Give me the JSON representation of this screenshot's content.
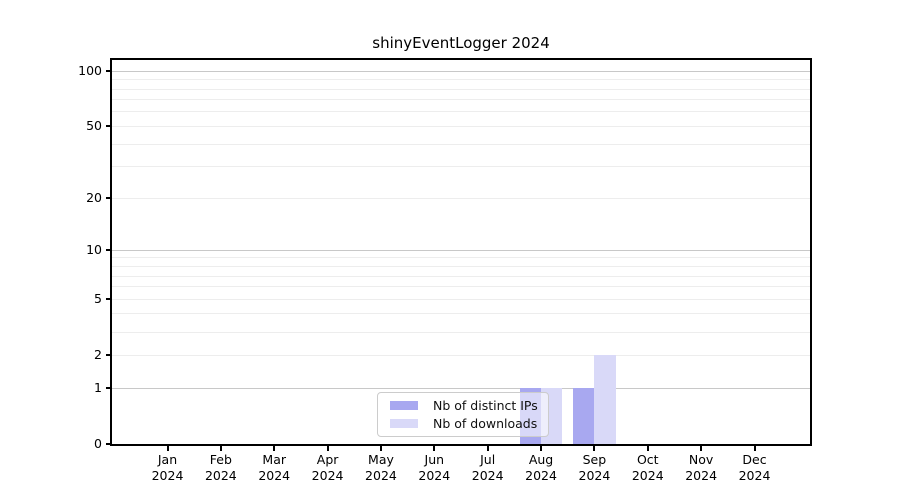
{
  "title": "shinyEventLogger 2024",
  "chart_data": {
    "type": "bar",
    "title": "shinyEventLogger 2024",
    "categories": [
      "Jan 2024",
      "Feb 2024",
      "Mar 2024",
      "Apr 2024",
      "May 2024",
      "Jun 2024",
      "Jul 2024",
      "Aug 2024",
      "Sep 2024",
      "Oct 2024",
      "Nov 2024",
      "Dec 2024"
    ],
    "series": [
      {
        "name": "Nb of distinct IPs",
        "color": "#a8a8f0",
        "values": [
          0,
          0,
          0,
          0,
          0,
          0,
          0,
          1,
          1,
          0,
          0,
          0
        ]
      },
      {
        "name": "Nb of downloads",
        "color": "#d9d9f8",
        "values": [
          0,
          0,
          0,
          0,
          0,
          0,
          0,
          1,
          2,
          0,
          0,
          0
        ]
      }
    ],
    "xlabel": "",
    "ylabel": "",
    "yscale": "log1p",
    "ylim": [
      0,
      115
    ],
    "yticks": [
      0,
      1,
      2,
      5,
      10,
      20,
      50,
      100
    ],
    "y_major_gridlines": [
      1,
      10,
      100
    ],
    "y_minor_gridlines": [
      2,
      3,
      4,
      5,
      6,
      7,
      8,
      9,
      20,
      30,
      40,
      50,
      60,
      70,
      80,
      90
    ],
    "grid": true,
    "legend_position": "lower center inside plot"
  },
  "colors": {
    "major_grid": "#c8c8c8",
    "minor_grid": "#ededed",
    "axis": "#000000",
    "bar_dark": "#a8a8f0",
    "bar_light": "#d9d9f8",
    "legend_border": "#cccccc"
  }
}
